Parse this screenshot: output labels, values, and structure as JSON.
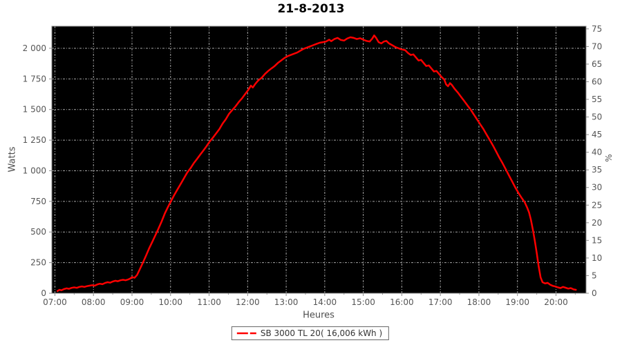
{
  "chart": {
    "title": "21-8-2013",
    "x_axis_label": "Heures",
    "y_axis_left_label": "Watts",
    "y_axis_right_label": "%",
    "legend": {
      "label": "SB 3000 TL 20( 16,006 kWh )"
    }
  },
  "chart_data": {
    "type": "line",
    "title": "21-8-2013",
    "xlabel": "Heures",
    "ylabel_left": "Watts",
    "ylabel_right": "%",
    "grid": true,
    "legend_position": "bottom",
    "colors": {
      "series": "#ff0000",
      "plot_background": "#000000",
      "grid_line": "#a8a8a8",
      "axis_line": "#8c8c8c",
      "tick_text": "#555555",
      "title_text": "#000000",
      "legend_border": "#666666"
    },
    "x_ticks": [
      {
        "label": "07:00",
        "hour": 7
      },
      {
        "label": "08:00",
        "hour": 8
      },
      {
        "label": "09:00",
        "hour": 9
      },
      {
        "label": "10:00",
        "hour": 10
      },
      {
        "label": "11:00",
        "hour": 11
      },
      {
        "label": "12:00",
        "hour": 12
      },
      {
        "label": "13:00",
        "hour": 13
      },
      {
        "label": "14:00",
        "hour": 14
      },
      {
        "label": "15:00",
        "hour": 15
      },
      {
        "label": "16:00",
        "hour": 16
      },
      {
        "label": "17:00",
        "hour": 17
      },
      {
        "label": "18:00",
        "hour": 18
      },
      {
        "label": "19:00",
        "hour": 19
      },
      {
        "label": "20:00",
        "hour": 20
      }
    ],
    "x_minor_tick_hours": [
      7.5,
      8.5,
      9.5,
      10.5,
      11.5,
      12.5,
      13.5,
      14.5,
      15.5,
      16.5,
      17.5,
      18.5,
      19.5,
      20.5
    ],
    "x_range_hours": [
      6.92,
      20.78
    ],
    "y_left_ticks": [
      {
        "label": "0",
        "value": 0
      },
      {
        "label": "250",
        "value": 250
      },
      {
        "label": "500",
        "value": 500
      },
      {
        "label": "750",
        "value": 750
      },
      {
        "label": "1 000",
        "value": 1000
      },
      {
        "label": "1 250",
        "value": 1250
      },
      {
        "label": "1 500",
        "value": 1500
      },
      {
        "label": "1 750",
        "value": 1750
      },
      {
        "label": "2 000",
        "value": 2000
      }
    ],
    "y_left_range": [
      0,
      2180
    ],
    "y_right_ticks": [
      {
        "label": "0",
        "value": 0
      },
      {
        "label": "5",
        "value": 5
      },
      {
        "label": "10",
        "value": 10
      },
      {
        "label": "15",
        "value": 15
      },
      {
        "label": "20",
        "value": 20
      },
      {
        "label": "25",
        "value": 25
      },
      {
        "label": "30",
        "value": 30
      },
      {
        "label": "35",
        "value": 35
      },
      {
        "label": "40",
        "value": 40
      },
      {
        "label": "45",
        "value": 45
      },
      {
        "label": "50",
        "value": 50
      },
      {
        "label": "55",
        "value": 55
      },
      {
        "label": "60",
        "value": 60
      },
      {
        "label": "65",
        "value": 65
      },
      {
        "label": "70",
        "value": 70
      },
      {
        "label": "75",
        "value": 75
      }
    ],
    "y_right_range": [
      0,
      75.75
    ],
    "series": [
      {
        "name": "SB 3000 TL 20( 16,006 kWh )",
        "color": "#ff0000",
        "points": [
          [
            "07:04",
            18
          ],
          [
            "07:07",
            28
          ],
          [
            "07:10",
            24
          ],
          [
            "07:14",
            34
          ],
          [
            "07:18",
            40
          ],
          [
            "07:22",
            36
          ],
          [
            "07:26",
            44
          ],
          [
            "07:30",
            48
          ],
          [
            "07:34",
            44
          ],
          [
            "07:38",
            52
          ],
          [
            "07:42",
            56
          ],
          [
            "07:46",
            52
          ],
          [
            "07:50",
            58
          ],
          [
            "07:54",
            62
          ],
          [
            "07:58",
            66
          ],
          [
            "08:02",
            62
          ],
          [
            "08:06",
            72
          ],
          [
            "08:10",
            78
          ],
          [
            "08:14",
            74
          ],
          [
            "08:18",
            84
          ],
          [
            "08:22",
            90
          ],
          [
            "08:26",
            86
          ],
          [
            "08:30",
            96
          ],
          [
            "08:34",
            102
          ],
          [
            "08:38",
            98
          ],
          [
            "08:42",
            106
          ],
          [
            "08:46",
            110
          ],
          [
            "08:50",
            106
          ],
          [
            "08:54",
            112
          ],
          [
            "08:58",
            122
          ],
          [
            "09:00",
            132
          ],
          [
            "09:04",
            126
          ],
          [
            "09:08",
            150
          ],
          [
            "09:12",
            195
          ],
          [
            "09:17",
            250
          ],
          [
            "09:22",
            310
          ],
          [
            "09:27",
            370
          ],
          [
            "09:32",
            425
          ],
          [
            "09:36",
            470
          ],
          [
            "09:41",
            525
          ],
          [
            "09:46",
            585
          ],
          [
            "09:51",
            650
          ],
          [
            "09:56",
            705
          ],
          [
            "10:01",
            755
          ],
          [
            "10:06",
            805
          ],
          [
            "10:11",
            850
          ],
          [
            "10:16",
            895
          ],
          [
            "10:21",
            940
          ],
          [
            "10:26",
            985
          ],
          [
            "10:31",
            1020
          ],
          [
            "10:36",
            1060
          ],
          [
            "10:41",
            1095
          ],
          [
            "10:46",
            1130
          ],
          [
            "10:51",
            1165
          ],
          [
            "10:56",
            1200
          ],
          [
            "11:01",
            1240
          ],
          [
            "11:06",
            1270
          ],
          [
            "11:11",
            1305
          ],
          [
            "11:16",
            1340
          ],
          [
            "11:21",
            1385
          ],
          [
            "11:26",
            1420
          ],
          [
            "11:31",
            1465
          ],
          [
            "11:36",
            1495
          ],
          [
            "11:41",
            1525
          ],
          [
            "11:46",
            1560
          ],
          [
            "11:51",
            1590
          ],
          [
            "11:56",
            1625
          ],
          [
            "12:01",
            1660
          ],
          [
            "12:05",
            1695
          ],
          [
            "12:08",
            1680
          ],
          [
            "12:12",
            1710
          ],
          [
            "12:17",
            1740
          ],
          [
            "12:22",
            1760
          ],
          [
            "12:27",
            1790
          ],
          [
            "12:32",
            1815
          ],
          [
            "12:37",
            1835
          ],
          [
            "12:42",
            1855
          ],
          [
            "12:47",
            1880
          ],
          [
            "12:52",
            1900
          ],
          [
            "12:57",
            1920
          ],
          [
            "13:02",
            1935
          ],
          [
            "13:07",
            1945
          ],
          [
            "13:12",
            1955
          ],
          [
            "13:17",
            1965
          ],
          [
            "13:22",
            1980
          ],
          [
            "13:27",
            1995
          ],
          [
            "13:32",
            2005
          ],
          [
            "13:37",
            2015
          ],
          [
            "13:42",
            2025
          ],
          [
            "13:47",
            2035
          ],
          [
            "13:52",
            2045
          ],
          [
            "13:57",
            2050
          ],
          [
            "14:02",
            2055
          ],
          [
            "14:07",
            2070
          ],
          [
            "14:10",
            2058
          ],
          [
            "14:15",
            2075
          ],
          [
            "14:20",
            2085
          ],
          [
            "14:25",
            2068
          ],
          [
            "14:30",
            2063
          ],
          [
            "14:35",
            2080
          ],
          [
            "14:40",
            2090
          ],
          [
            "14:45",
            2085
          ],
          [
            "14:50",
            2075
          ],
          [
            "14:55",
            2082
          ],
          [
            "15:00",
            2070
          ],
          [
            "15:05",
            2060
          ],
          [
            "15:10",
            2055
          ],
          [
            "15:14",
            2080
          ],
          [
            "15:17",
            2105
          ],
          [
            "15:20",
            2085
          ],
          [
            "15:24",
            2050
          ],
          [
            "15:28",
            2040
          ],
          [
            "15:32",
            2055
          ],
          [
            "15:36",
            2060
          ],
          [
            "15:40",
            2040
          ],
          [
            "15:45",
            2025
          ],
          [
            "15:50",
            2010
          ],
          [
            "15:55",
            2000
          ],
          [
            "16:00",
            1990
          ],
          [
            "16:05",
            1985
          ],
          [
            "16:10",
            1960
          ],
          [
            "16:14",
            1945
          ],
          [
            "16:18",
            1950
          ],
          [
            "16:22",
            1925
          ],
          [
            "16:26",
            1900
          ],
          [
            "16:30",
            1905
          ],
          [
            "16:34",
            1880
          ],
          [
            "16:38",
            1855
          ],
          [
            "16:42",
            1860
          ],
          [
            "16:46",
            1835
          ],
          [
            "16:50",
            1810
          ],
          [
            "16:54",
            1815
          ],
          [
            "16:58",
            1790
          ],
          [
            "17:02",
            1765
          ],
          [
            "17:06",
            1745
          ],
          [
            "17:09",
            1705
          ],
          [
            "17:12",
            1690
          ],
          [
            "17:15",
            1715
          ],
          [
            "17:18",
            1700
          ],
          [
            "17:22",
            1670
          ],
          [
            "17:27",
            1640
          ],
          [
            "17:32",
            1605
          ],
          [
            "17:37",
            1570
          ],
          [
            "17:42",
            1535
          ],
          [
            "17:47",
            1500
          ],
          [
            "17:52",
            1460
          ],
          [
            "17:57",
            1420
          ],
          [
            "18:02",
            1380
          ],
          [
            "18:07",
            1340
          ],
          [
            "18:12",
            1295
          ],
          [
            "18:17",
            1250
          ],
          [
            "18:22",
            1205
          ],
          [
            "18:27",
            1155
          ],
          [
            "18:32",
            1105
          ],
          [
            "18:37",
            1060
          ],
          [
            "18:42",
            1010
          ],
          [
            "18:47",
            960
          ],
          [
            "18:52",
            910
          ],
          [
            "18:57",
            860
          ],
          [
            "19:02",
            815
          ],
          [
            "19:07",
            775
          ],
          [
            "19:11",
            745
          ],
          [
            "19:15",
            700
          ],
          [
            "19:18",
            660
          ],
          [
            "19:21",
            600
          ],
          [
            "19:24",
            520
          ],
          [
            "19:27",
            430
          ],
          [
            "19:30",
            330
          ],
          [
            "19:33",
            220
          ],
          [
            "19:36",
            130
          ],
          [
            "19:39",
            90
          ],
          [
            "19:43",
            80
          ],
          [
            "19:47",
            85
          ],
          [
            "19:51",
            70
          ],
          [
            "19:55",
            60
          ],
          [
            "19:59",
            55
          ],
          [
            "20:03",
            48
          ],
          [
            "20:07",
            42
          ],
          [
            "20:11",
            52
          ],
          [
            "20:15",
            45
          ],
          [
            "20:19",
            38
          ],
          [
            "20:23",
            42
          ],
          [
            "20:27",
            32
          ],
          [
            "20:31",
            28
          ]
        ]
      }
    ]
  }
}
